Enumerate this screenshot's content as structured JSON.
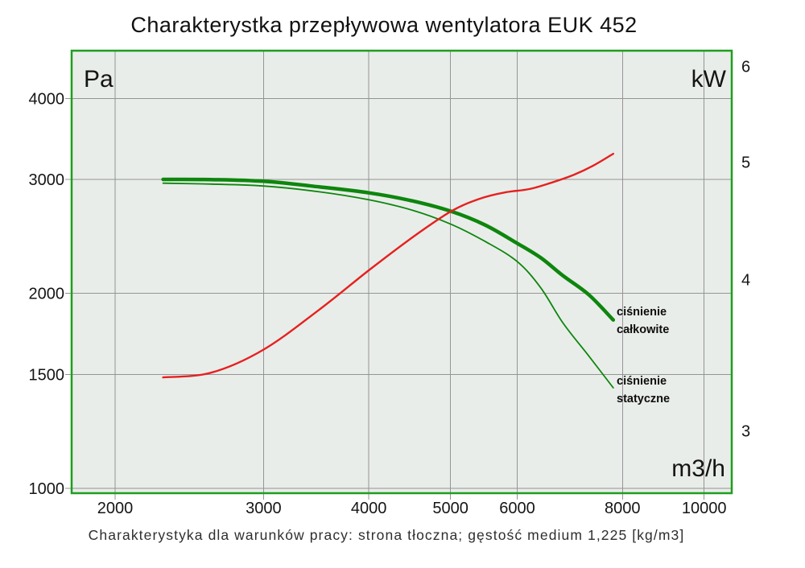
{
  "title": "Charakterystka przepływowa wentylatora EUK 452",
  "caption": "Charakterystyka dla warunków pracy: strona tłoczna; gęstość medium 1,225 [kg/m3]",
  "units": {
    "y_left": "Pa",
    "y_right": "kW",
    "x": "m3/h"
  },
  "colors": {
    "plot_bg": "#e9ede9",
    "grid": "#949494",
    "border": "#1e9e1e",
    "green_curve": "#0d860d",
    "red_curve": "#e6201f",
    "text": "#151515"
  },
  "chart_data": {
    "type": "line",
    "title": "Charakterystka przepływowa wentylatora EUK 452",
    "xlabel": "m3/h",
    "ylabel_left": "Pa",
    "ylabel_right": "kW",
    "grid": true,
    "legend_position": "inline-right",
    "x_axis": {
      "scale": "log",
      "range": [
        1776,
        10783
      ],
      "ticks": [
        2000,
        3000,
        4000,
        5000,
        6000,
        8000,
        10000
      ]
    },
    "y_axis_left": {
      "scale": "log",
      "range": [
        983,
        4741
      ],
      "ticks": [
        1000,
        1500,
        2000,
        3000,
        4000
      ]
    },
    "y_axis_right": {
      "scale": "log",
      "range": [
        2.664,
        6.18
      ],
      "ticks": [
        3,
        4,
        5,
        6
      ]
    },
    "series": [
      {
        "id": "total-pressure",
        "name": "ciśnienie całkowite",
        "axis": "left",
        "unit": "Pa",
        "color": "#0d860d",
        "width": 4.5,
        "points": [
          [
            2280,
            3000
          ],
          [
            2600,
            2998
          ],
          [
            3000,
            2980
          ],
          [
            3500,
            2920
          ],
          [
            4000,
            2860
          ],
          [
            4500,
            2780
          ],
          [
            5000,
            2680
          ],
          [
            5500,
            2550
          ],
          [
            6000,
            2390
          ],
          [
            6400,
            2270
          ],
          [
            6800,
            2130
          ],
          [
            7300,
            1990
          ],
          [
            7800,
            1820
          ]
        ]
      },
      {
        "id": "static-pressure",
        "name": "ciśnienie statyczne",
        "axis": "left",
        "unit": "Pa",
        "color": "#0d860d",
        "width": 1.8,
        "points": [
          [
            2280,
            2960
          ],
          [
            2600,
            2950
          ],
          [
            3000,
            2930
          ],
          [
            3500,
            2870
          ],
          [
            4000,
            2790
          ],
          [
            4500,
            2690
          ],
          [
            5000,
            2560
          ],
          [
            5500,
            2405
          ],
          [
            6000,
            2240
          ],
          [
            6400,
            2040
          ],
          [
            6800,
            1800
          ],
          [
            7300,
            1600
          ],
          [
            7800,
            1430
          ]
        ]
      },
      {
        "id": "power",
        "name": "kW",
        "axis": "right",
        "unit": "kW",
        "color": "#e6201f",
        "width": 2.4,
        "points": [
          [
            2280,
            3.32
          ],
          [
            2600,
            3.35
          ],
          [
            3000,
            3.5
          ],
          [
            3500,
            3.78
          ],
          [
            4000,
            4.07
          ],
          [
            4500,
            4.33
          ],
          [
            5000,
            4.55
          ],
          [
            5400,
            4.66
          ],
          [
            5800,
            4.72
          ],
          [
            6200,
            4.75
          ],
          [
            6600,
            4.81
          ],
          [
            7000,
            4.88
          ],
          [
            7400,
            4.97
          ],
          [
            7800,
            5.08
          ]
        ]
      }
    ],
    "annotations": {
      "total": {
        "line1": "ciśnienie",
        "line2": "całkowite"
      },
      "static": {
        "line1": "ciśnienie",
        "line2": "statyczne"
      }
    }
  }
}
